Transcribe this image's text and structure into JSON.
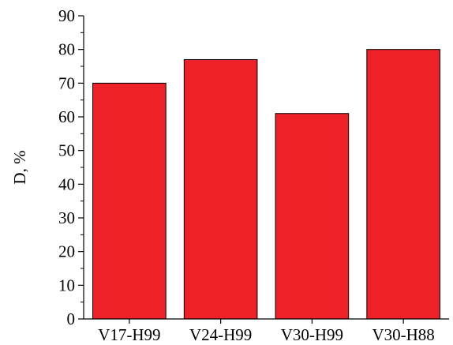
{
  "chart_data": {
    "type": "bar",
    "title": "",
    "xlabel": "",
    "ylabel": "D, %",
    "categories": [
      "V17-H99",
      "V24-H99",
      "V30-H99",
      "V30-H88"
    ],
    "values": [
      70,
      77,
      61,
      80
    ],
    "ylim": [
      0,
      90
    ],
    "yticks": [
      0,
      10,
      20,
      30,
      40,
      50,
      60,
      70,
      80,
      90
    ],
    "grid": false,
    "legend": "none",
    "bar_color": "#ee2128",
    "bar_edge_color": "#000000"
  }
}
